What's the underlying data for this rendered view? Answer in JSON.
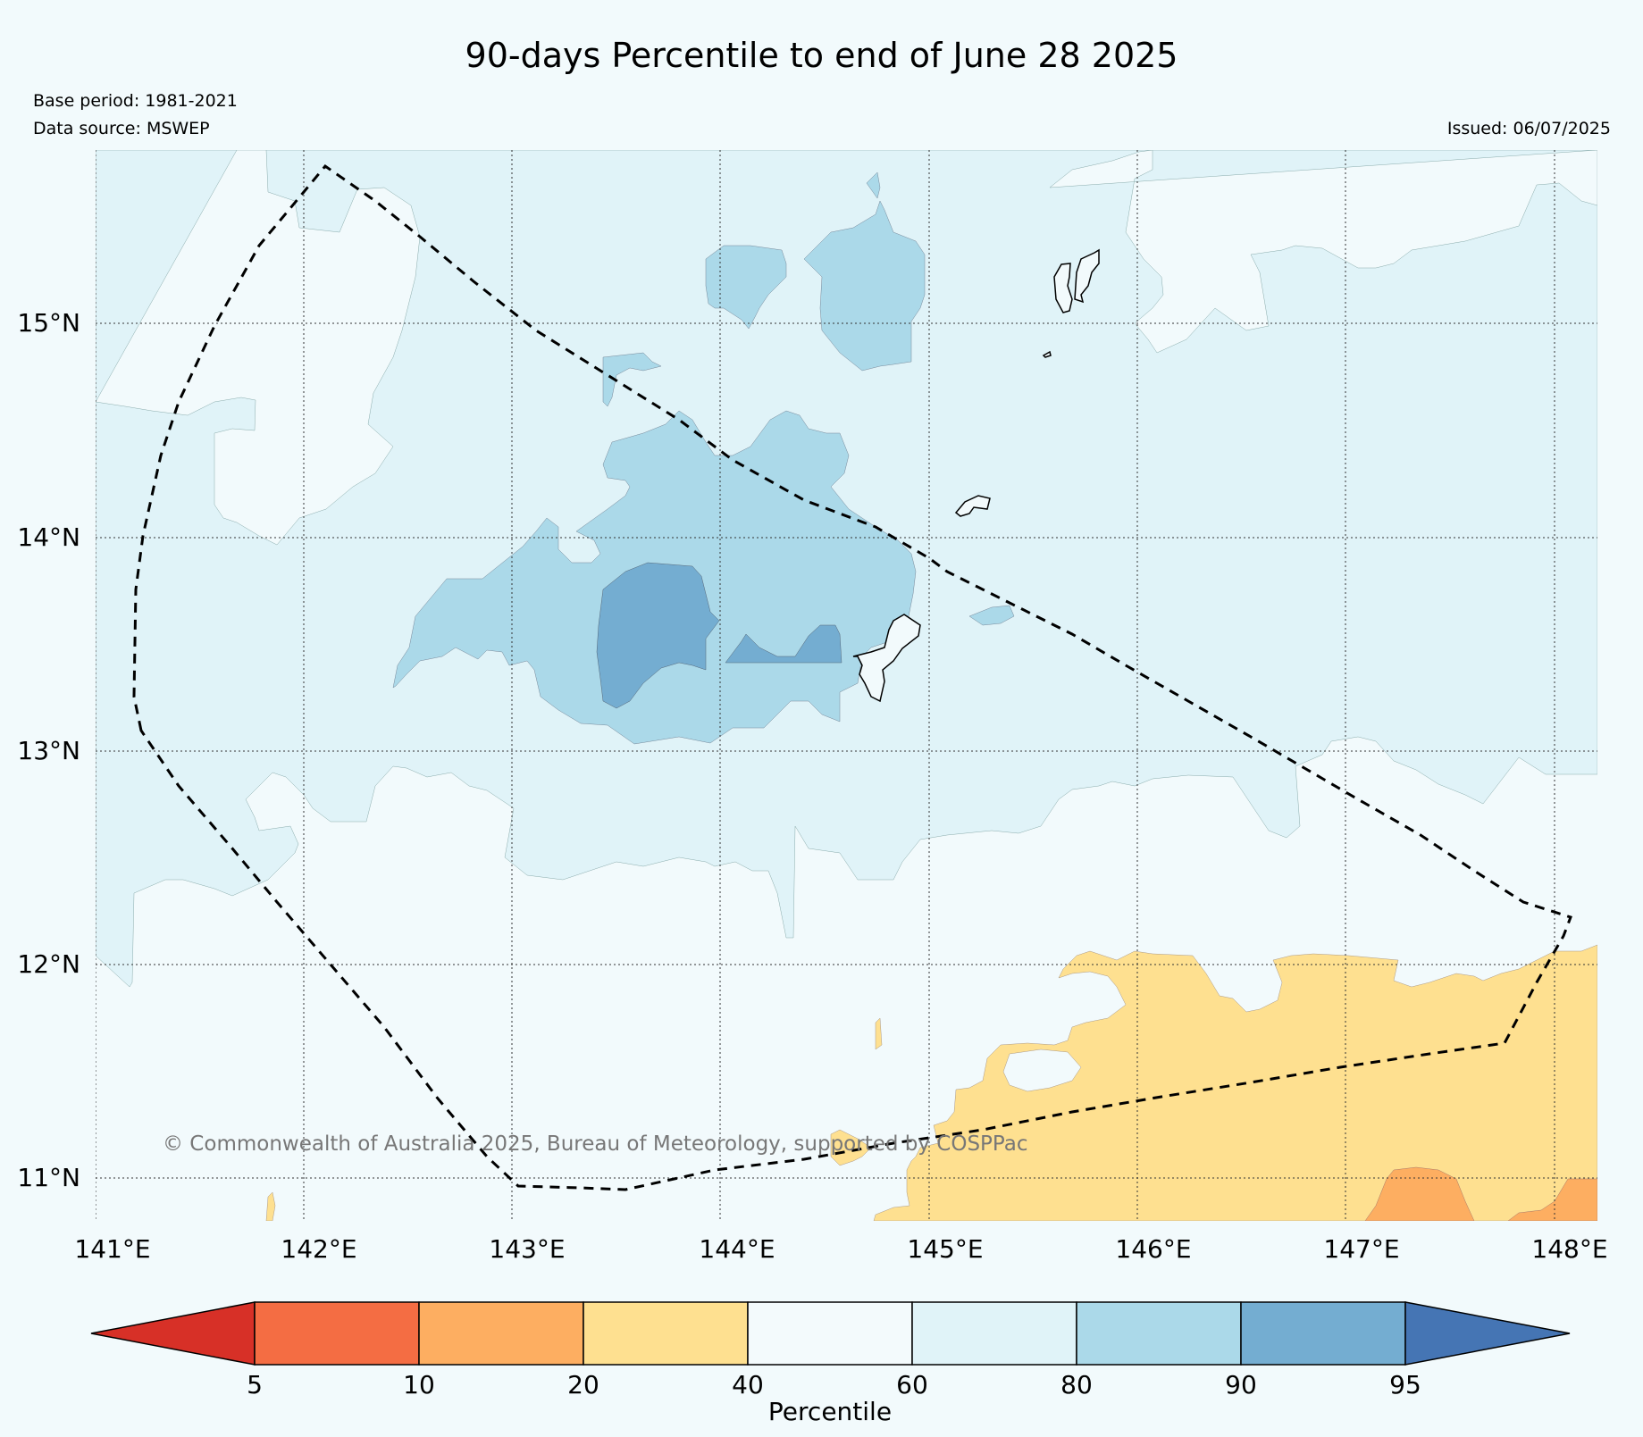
{
  "title": "90-days Percentile to end of June 28 2025",
  "base_period": "Base period: 1981-2021",
  "data_source": "Data source: MSWEP",
  "issued": "Issued: 06/07/2025",
  "copyright": "© Commonwealth of Australia 2025, Bureau of Meteorology, supported by COSPPac",
  "map": {
    "lon_ticks": [
      "141°E",
      "142°E",
      "143°E",
      "144°E",
      "145°E",
      "146°E",
      "147°E",
      "148°E"
    ],
    "lat_ticks": [
      "15°N",
      "14°N",
      "13°N",
      "12°N",
      "11°N"
    ]
  },
  "colorbar": {
    "label": "Percentile",
    "ticks": [
      "5",
      "10",
      "20",
      "40",
      "60",
      "80",
      "90",
      "95"
    ],
    "colors": [
      "#d73027",
      "#f46d43",
      "#fdae61",
      "#fee090",
      "#f3fafc",
      "#e0f3f8",
      "#abd9e9",
      "#74add1",
      "#4575b4"
    ]
  },
  "colors": {
    "background": "#f2fafc",
    "above_60": "#e0f3f8",
    "above_80": "#abd9e9",
    "above_90": "#74add1",
    "below_40": "#fee090",
    "below_20": "#fdae61"
  }
}
